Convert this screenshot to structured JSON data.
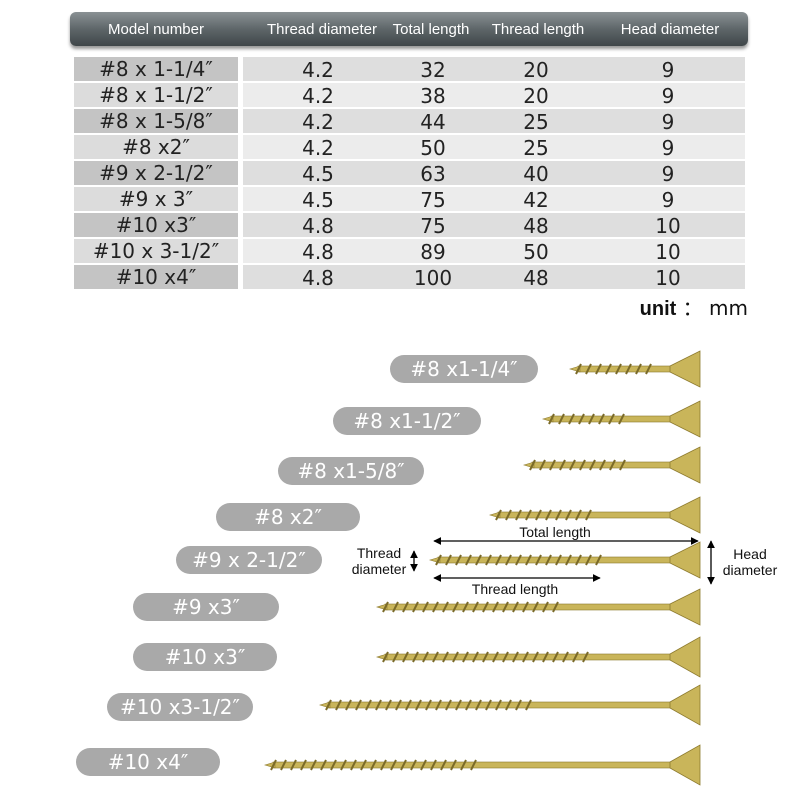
{
  "table": {
    "headers": [
      "Model number",
      "Thread diameter",
      "Total length",
      "Thread length",
      "Head diameter"
    ],
    "rows": [
      [
        "#8 x 1-1/4″",
        "4.2",
        "32",
        "20",
        "9"
      ],
      [
        "#8 x 1-1/2″",
        "4.2",
        "38",
        "20",
        "9"
      ],
      [
        "#8 x 1-5/8″",
        "4.2",
        "44",
        "25",
        "9"
      ],
      [
        "#8 x2″",
        "4.2",
        "50",
        "25",
        "9"
      ],
      [
        "#9 x 2-1/2″",
        "4.5",
        "63",
        "40",
        "9"
      ],
      [
        "#9 x 3″",
        "4.5",
        "75",
        "42",
        "9"
      ],
      [
        "#10 x3″",
        "4.8",
        "75",
        "48",
        "10"
      ],
      [
        "#10 x 3-1/2″",
        "4.8",
        "89",
        "50",
        "10"
      ],
      [
        "#10 x4″",
        "4.8",
        "100",
        "48",
        "10"
      ]
    ]
  },
  "unit": {
    "label": "unit",
    "sep": "：",
    "value": "mm"
  },
  "diagram": {
    "labels": [
      "#8 x1-1/4″",
      "#8 x1-1/2″",
      "#8 x1-5/8″",
      "#8 x2″",
      "#9 x 2-1/2″",
      "#9 x3″",
      "#10 x3″",
      "#10 x3-1/2″",
      "#10 x4″"
    ],
    "annotations": {
      "total_length": "Total length",
      "thread_length": "Thread length",
      "thread_diameter": "Thread\ndiameter",
      "head_diameter": "Head\ndiameter"
    },
    "screw_color": "#c9b55a"
  }
}
